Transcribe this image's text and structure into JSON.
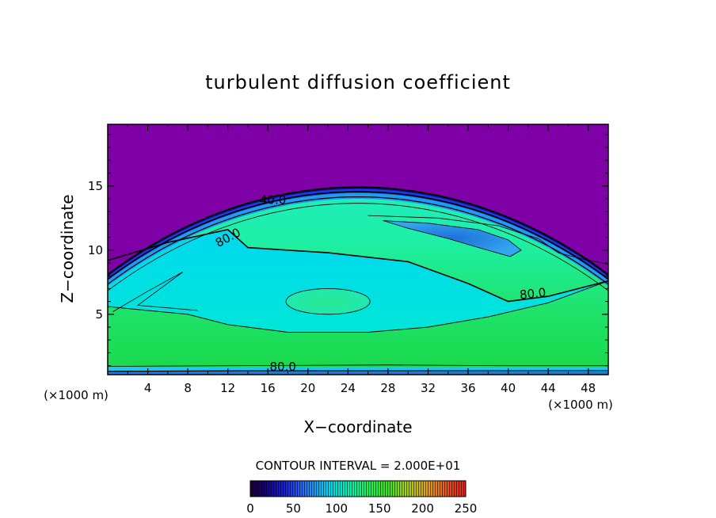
{
  "chart_data": {
    "type": "heatmap",
    "title": "turbulent diffusion coefficient",
    "xlabel": "X−coordinate",
    "ylabel": "Z−coordinate",
    "x_unit_left": "(×1000 m)",
    "x_unit_right": "(×1000 m)",
    "xlim": [
      0,
      50
    ],
    "ylim": [
      0.3,
      19.8
    ],
    "x_ticks": [
      4,
      8,
      12,
      16,
      20,
      24,
      28,
      32,
      36,
      40,
      44,
      48
    ],
    "y_ticks": [
      5,
      10,
      15
    ],
    "contour_labels": [
      {
        "text": "40.0",
        "x": 16.5,
        "z": 13.6
      },
      {
        "text": "80.0",
        "x": 12.2,
        "z": 10.7
      },
      {
        "text": "80.0",
        "x": 42.5,
        "z": 6.3
      },
      {
        "text": "80.0",
        "x": 17.5,
        "z": 0.6
      }
    ],
    "contour_interval": "CONTOUR INTERVAL = 2.000E+01",
    "colorbar": {
      "min": 0,
      "max": 250,
      "ticks": [
        "0",
        "50",
        "100",
        "150",
        "200",
        "250"
      ]
    },
    "colors": {
      "above_boundary": "#7f00a6",
      "boundary_edge": "#1a10c8",
      "mid_blue": "#2f7fe0",
      "cyan": "#00e4e4",
      "aqua_green": "#1ef0a8",
      "green": "#1ee050"
    }
  }
}
